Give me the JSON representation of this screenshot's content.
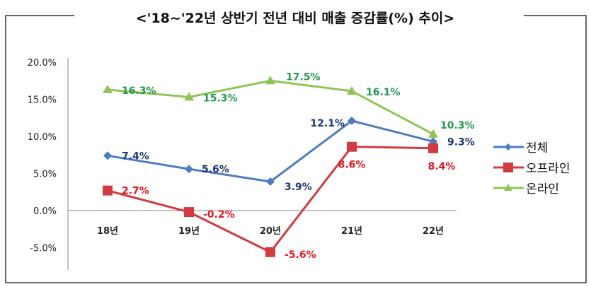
{
  "chart_data": {
    "type": "line",
    "title": "<'18~'22년 상반기 전년 대비 매출 증감률(%) 추이>",
    "categories": [
      "18년",
      "19년",
      "20년",
      "21년",
      "22년"
    ],
    "series": [
      {
        "name": "전체",
        "values": [
          7.4,
          5.6,
          3.9,
          12.1,
          9.3
        ],
        "labels": [
          "7.4%",
          "5.6%",
          "3.9%",
          "12.1%",
          "9.3%"
        ],
        "color": "#4a7cc4",
        "label_color": "#1f3573",
        "marker": "diamond"
      },
      {
        "name": "오프라인",
        "values": [
          2.7,
          -0.2,
          -5.6,
          8.6,
          8.4
        ],
        "labels": [
          "2.7%",
          "-0.2%",
          "-5.6%",
          "8.6%",
          "8.4%"
        ],
        "color": "#d23a3f",
        "label_color": "#e8141c",
        "marker": "square"
      },
      {
        "name": "온라인",
        "values": [
          16.3,
          15.3,
          17.5,
          16.1,
          10.3
        ],
        "labels": [
          "16.3%",
          "15.3%",
          "17.5%",
          "16.1%",
          "10.3%"
        ],
        "color": "#8fc553",
        "label_color": "#1f9a4f",
        "marker": "triangle"
      }
    ],
    "yticks": [
      "20.0%",
      "15.0%",
      "10.0%",
      "5.0%",
      "0.0%",
      "-5.0%"
    ],
    "ytick_values": [
      20,
      15,
      10,
      5,
      0,
      -5
    ],
    "ylim": [
      -7.5,
      20
    ],
    "xlabel": "",
    "ylabel": "",
    "grid": false,
    "legend": "right"
  }
}
